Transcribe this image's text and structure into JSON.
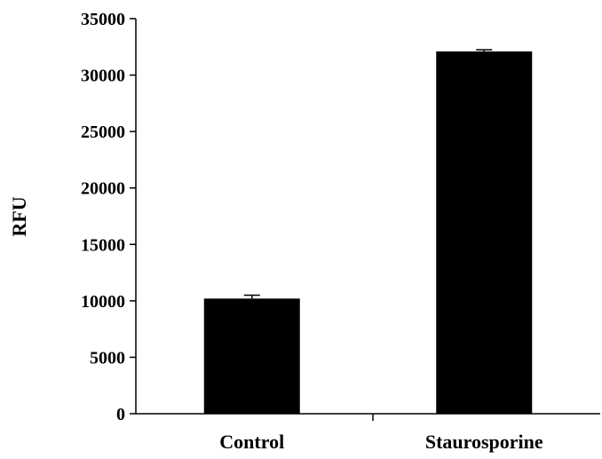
{
  "chart_data": {
    "type": "bar",
    "title": "",
    "xlabel": "",
    "ylabel": "RFU",
    "categories": [
      "Control",
      "Staurosporine"
    ],
    "values": [
      10200,
      32100
    ],
    "errors": [
      300,
      150
    ],
    "ylim": [
      0,
      35000
    ],
    "yticks": [
      0,
      5000,
      10000,
      15000,
      20000,
      25000,
      30000,
      35000
    ],
    "ytick_labels": [
      "0",
      "5000",
      "10000",
      "15000",
      "20000",
      "25000",
      "30000",
      "35000"
    ],
    "grid": false,
    "legend": "none",
    "bar_color": "#000000",
    "axis_color": "#000000"
  }
}
